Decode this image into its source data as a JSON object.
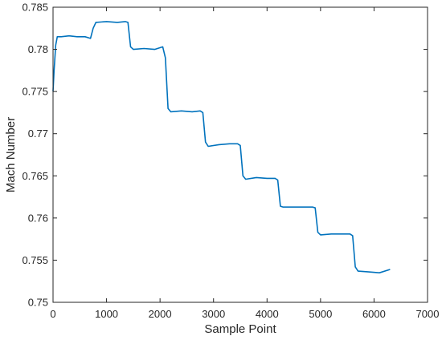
{
  "chart_data": {
    "type": "line",
    "title": "",
    "xlabel": "Sample Point",
    "ylabel": "Mach Number",
    "xlim": [
      0,
      7000
    ],
    "ylim": [
      0.75,
      0.785
    ],
    "xticks": [
      0,
      1000,
      2000,
      3000,
      4000,
      5000,
      6000,
      7000
    ],
    "yticks": [
      0.75,
      0.755,
      0.76,
      0.765,
      0.77,
      0.775,
      0.78,
      0.785
    ],
    "xtick_labels": [
      "0",
      "1000",
      "2000",
      "3000",
      "4000",
      "5000",
      "6000",
      "7000"
    ],
    "ytick_labels": [
      "0.75",
      "0.755",
      "0.76",
      "0.765",
      "0.77",
      "0.775",
      "0.78",
      "0.785"
    ],
    "grid": false,
    "legend": "none",
    "line_color": "#0072BD",
    "series": [
      {
        "x": [
          0,
          20,
          50,
          80,
          150,
          300,
          450,
          600,
          700,
          750,
          800,
          1000,
          1200,
          1350,
          1400,
          1450,
          1500,
          1700,
          1900,
          2050,
          2100,
          2150,
          2200,
          2400,
          2600,
          2750,
          2800,
          2850,
          2900,
          3100,
          3300,
          3450,
          3500,
          3550,
          3600,
          3800,
          4000,
          4150,
          4200,
          4250,
          4300,
          4500,
          4700,
          4850,
          4900,
          4950,
          5000,
          5200,
          5400,
          5550,
          5600,
          5650,
          5700,
          5900,
          6100,
          6300
        ],
        "y": [
          0.775,
          0.7775,
          0.7805,
          0.7815,
          0.7815,
          0.7816,
          0.7815,
          0.7815,
          0.7813,
          0.7825,
          0.7832,
          0.7833,
          0.7832,
          0.7833,
          0.7832,
          0.7803,
          0.78,
          0.7801,
          0.78,
          0.7803,
          0.779,
          0.773,
          0.7726,
          0.7727,
          0.7726,
          0.7727,
          0.7725,
          0.769,
          0.7685,
          0.7687,
          0.7688,
          0.7688,
          0.7686,
          0.765,
          0.7646,
          0.7648,
          0.7647,
          0.7647,
          0.7645,
          0.7614,
          0.7613,
          0.7613,
          0.7613,
          0.7613,
          0.7612,
          0.7583,
          0.758,
          0.7581,
          0.7581,
          0.7581,
          0.7579,
          0.7542,
          0.7537,
          0.7536,
          0.7535,
          0.7539
        ]
      }
    ]
  }
}
